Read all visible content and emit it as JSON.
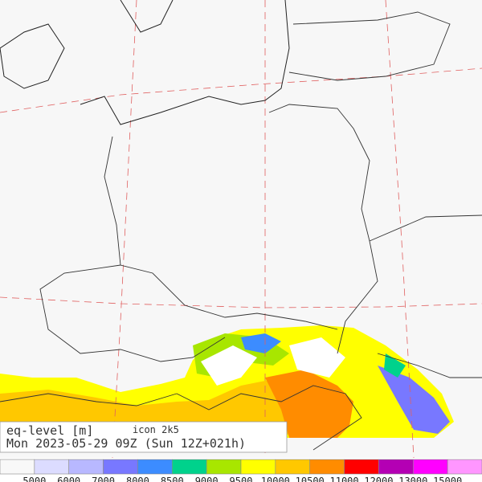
{
  "header": {
    "title": "eq-level [m]",
    "model": "icon 2k5",
    "valid_time": "Mon 2023-05-29 09Z (Sun 12Z+021h)"
  },
  "colorbar": {
    "colors": [
      "#f8f8f8",
      "#dcdcff",
      "#b8b8ff",
      "#7878ff",
      "#3c8cff",
      "#00d28c",
      "#a8e600",
      "#ffff00",
      "#ffc800",
      "#ff8c00",
      "#ff0000",
      "#b400b4",
      "#ff00ff",
      "#ff96ff"
    ],
    "levels": [
      5000,
      6000,
      7000,
      8000,
      8500,
      9000,
      9500,
      10000,
      10500,
      11000,
      12000,
      13000,
      15000
    ]
  }
}
